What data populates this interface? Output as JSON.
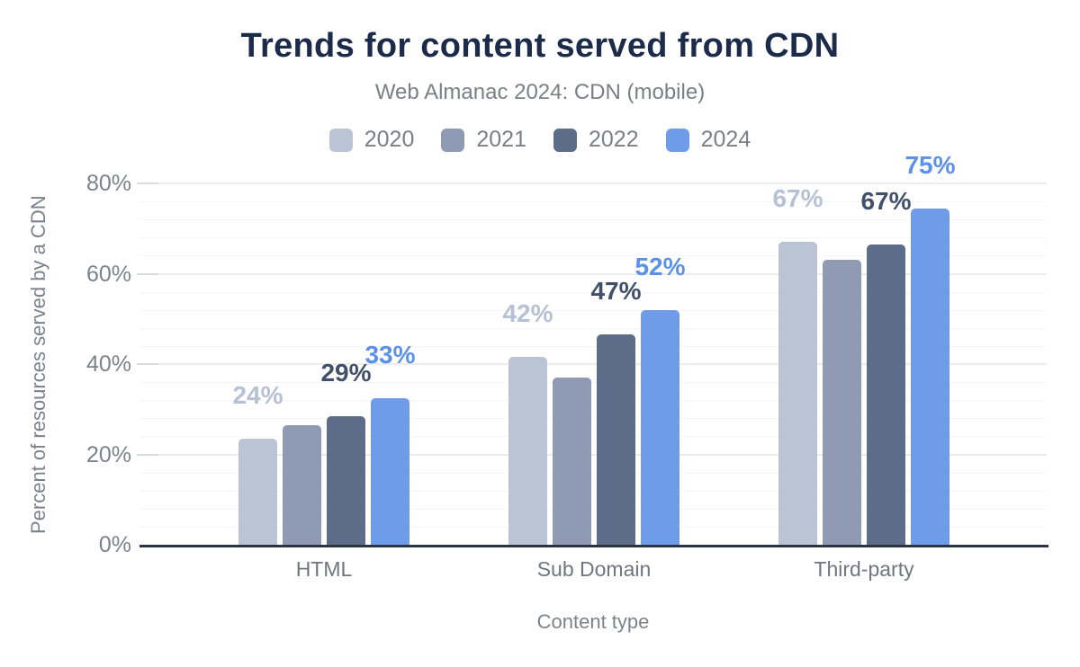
{
  "chart_data": {
    "type": "bar",
    "title": "Trends for content served from CDN",
    "subtitle": "Web Almanac 2024: CDN (mobile)",
    "xlabel": "Content type",
    "ylabel": "Percent of resources served by a CDN",
    "ylim": [
      0,
      80
    ],
    "ytick_step": 20,
    "minor_grid_step": 4,
    "ytick_labels": [
      "0%",
      "20%",
      "40%",
      "60%",
      "80%"
    ],
    "grid": true,
    "legend_position": "top",
    "categories": [
      "HTML",
      "Sub Domain",
      "Third-party"
    ],
    "series": [
      {
        "name": "2020",
        "color": "#bac4d4",
        "label_color": "#b6c1d3",
        "values": [
          23.5,
          41.5,
          67.0
        ],
        "labels": [
          "24%",
          "42%",
          "67%"
        ]
      },
      {
        "name": "2021",
        "color": "#8e9bb3",
        "label_color": null,
        "values": [
          26.5,
          37.0,
          63.0
        ],
        "labels": [
          null,
          null,
          null
        ]
      },
      {
        "name": "2022",
        "color": "#5d6c88",
        "label_color": "#42506a",
        "values": [
          28.5,
          46.5,
          66.5
        ],
        "labels": [
          "29%",
          "47%",
          "67%"
        ]
      },
      {
        "name": "2024",
        "color": "#6f9ce8",
        "label_color": "#5b91e8",
        "values": [
          32.5,
          52.0,
          74.5
        ],
        "labels": [
          "33%",
          "52%",
          "75%"
        ]
      }
    ]
  },
  "colors": {
    "background": "#ffffff",
    "title": "#1c2b4a",
    "subtitle": "#7b8086",
    "axis_text": "#7d828a",
    "category_text": "#70767e",
    "axis_line": "#2b3442",
    "grid_major": "#ececec",
    "grid_minor": "#f6f6f6",
    "tick": "#d9dbde"
  }
}
